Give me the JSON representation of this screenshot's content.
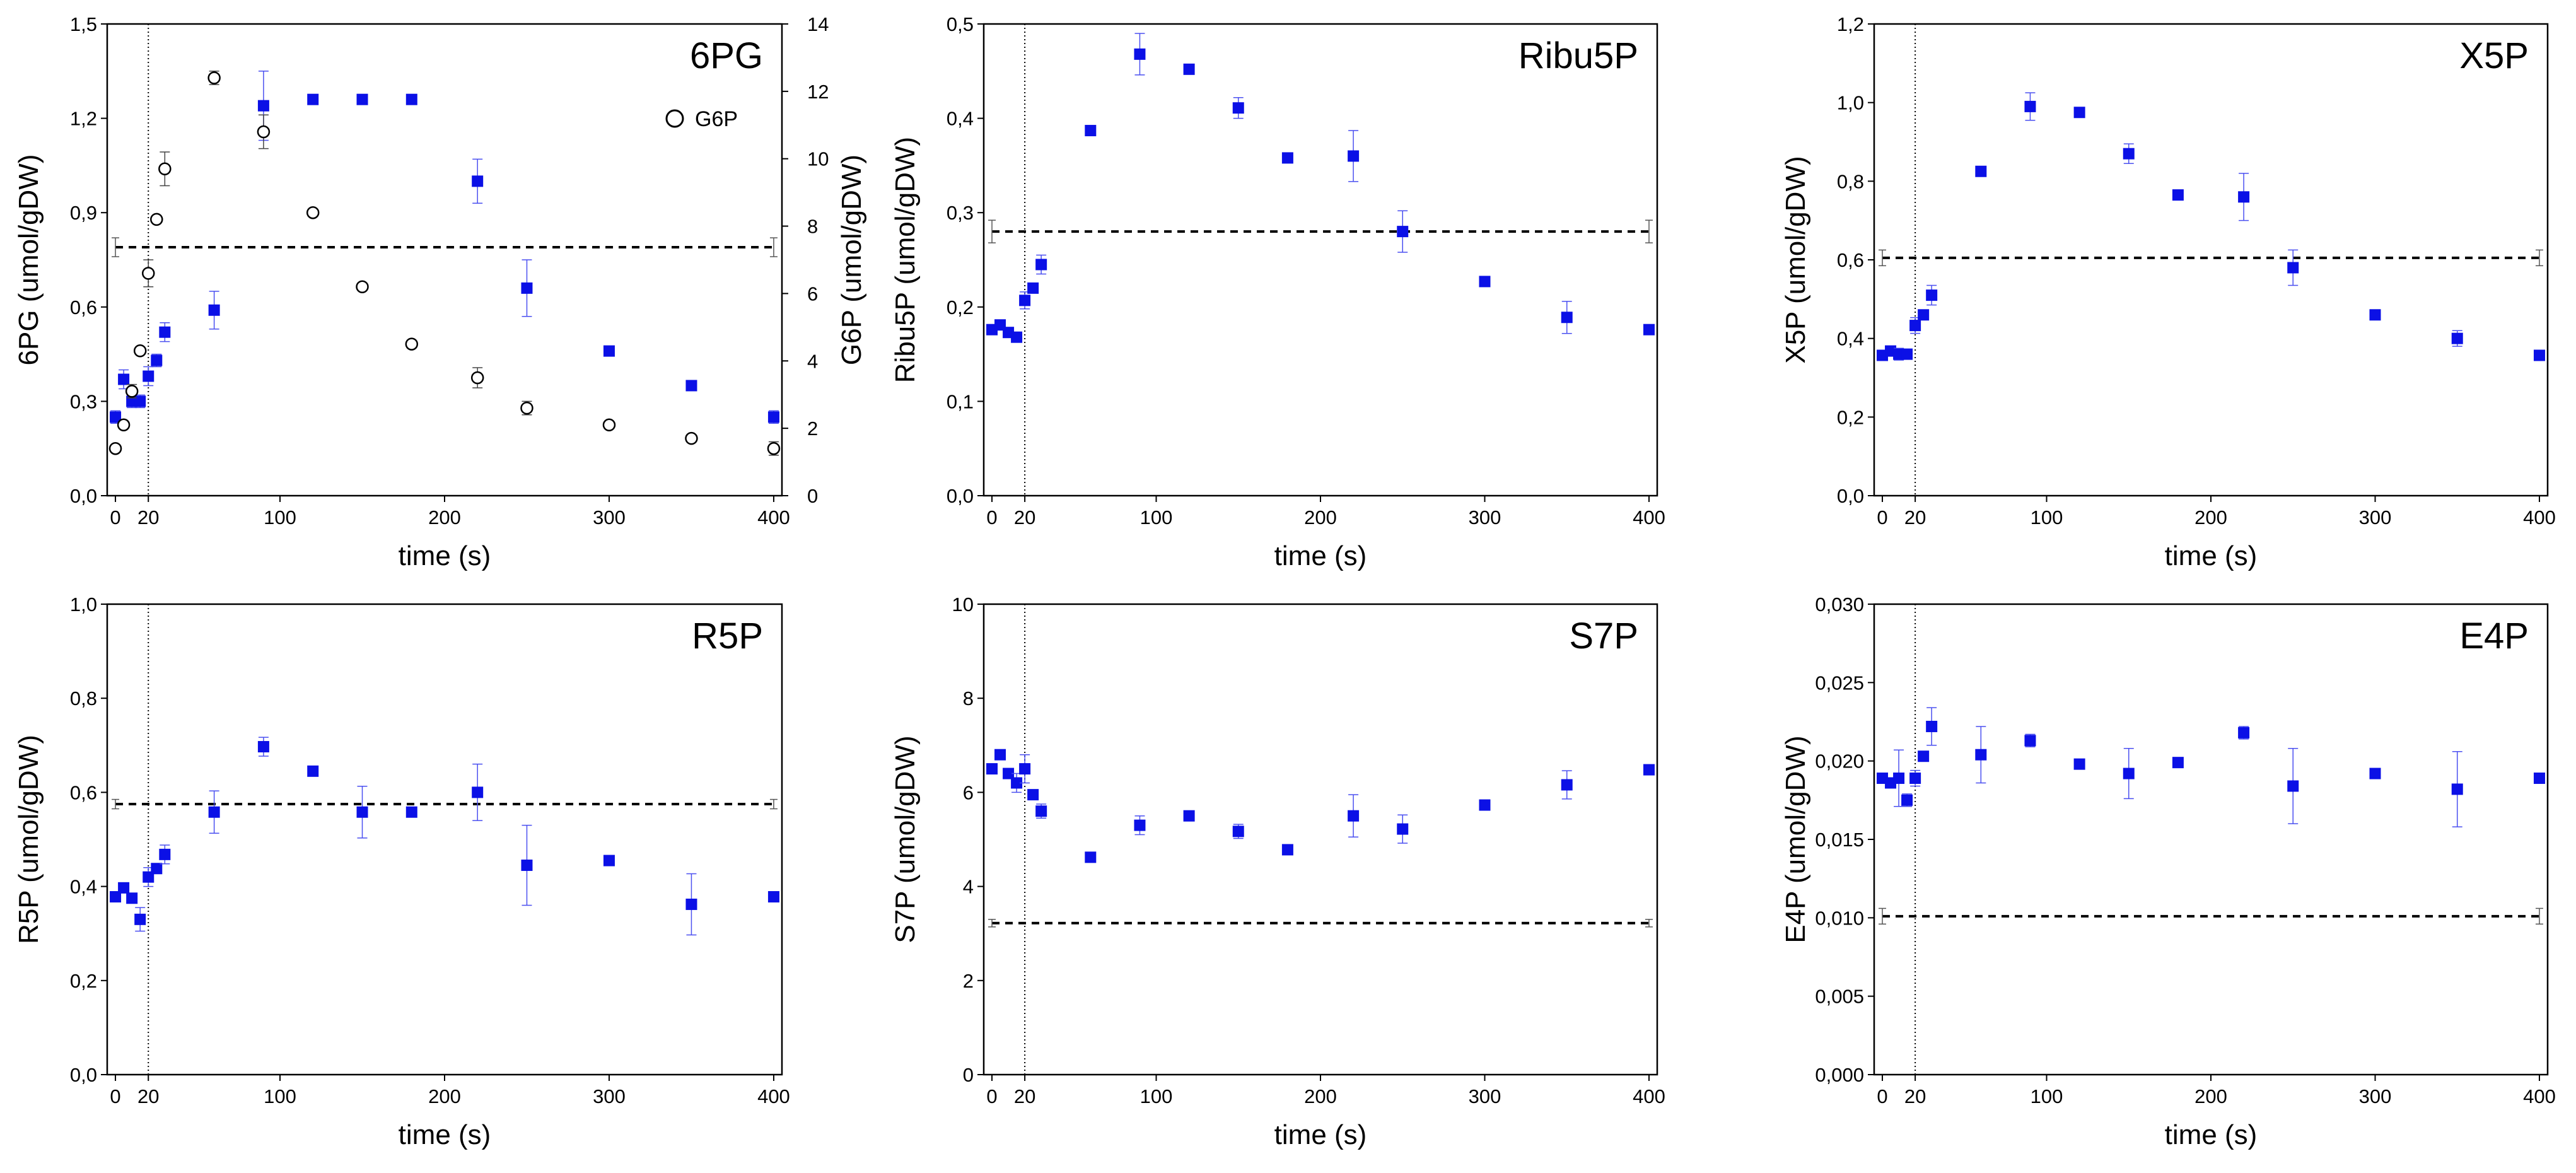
{
  "colors": {
    "series": "#0b10e6",
    "axis": "#000000",
    "baseline_dash": "#000000",
    "hollow_marker": "#000000"
  },
  "chart_data": [
    {
      "type": "scatter",
      "title": "6PG",
      "xlabel": "time (s)",
      "ylabel": "6PG (umol/gDW)",
      "xlim": [
        -5,
        405
      ],
      "ylim": [
        0,
        1.5
      ],
      "xticks": [
        0,
        20,
        100,
        200,
        300,
        400
      ],
      "xtick_labels": [
        "0",
        "20",
        "100",
        "200",
        "300",
        "400"
      ],
      "yticks": [
        0,
        0.3,
        0.6,
        0.9,
        1.2,
        1.5
      ],
      "ytick_labels": [
        "0,0",
        "0,3",
        "0,6",
        "0,9",
        "1,2",
        "1,5"
      ],
      "baseline": 0.79,
      "baseline_err": 0.03,
      "pulse_time": 20,
      "series": [
        {
          "marker": "square",
          "axis": "left",
          "x": [
            0,
            5,
            10,
            15,
            20,
            25,
            30,
            60,
            90,
            120,
            150,
            180,
            220,
            250,
            300,
            350,
            400
          ],
          "y": [
            0.25,
            0.37,
            0.3,
            0.3,
            0.38,
            0.43,
            0.52,
            0.59,
            1.24,
            1.26,
            1.26,
            1.26,
            1.0,
            0.66,
            0.46,
            0.35,
            0.25
          ],
          "err": [
            0.02,
            0.03,
            0.02,
            0.02,
            0.03,
            0.02,
            0.03,
            0.06,
            0.11,
            0.01,
            0.01,
            0.01,
            0.07,
            0.09,
            0.01,
            0.01,
            0.02
          ]
        },
        {
          "name": "G6P",
          "marker": "circle-open",
          "axis": "right",
          "x": [
            0,
            5,
            10,
            15,
            20,
            25,
            30,
            60,
            90,
            120,
            150,
            180,
            220,
            250,
            300,
            350,
            400
          ],
          "y": [
            1.4,
            2.1,
            3.1,
            4.3,
            6.6,
            8.2,
            9.7,
            12.4,
            10.8,
            8.4,
            6.2,
            4.5,
            3.5,
            2.6,
            2.1,
            1.7,
            1.4
          ],
          "err": [
            0.1,
            0.1,
            0.2,
            0.1,
            0.4,
            0.1,
            0.5,
            0.2,
            0.5,
            0.1,
            0.1,
            0.1,
            0.3,
            0.2,
            0.1,
            0.1,
            0.2
          ]
        }
      ],
      "y2label": "G6P (umol/gDW)",
      "y2lim": [
        0,
        14
      ],
      "y2ticks": [
        0,
        2,
        4,
        6,
        8,
        10,
        12,
        14
      ],
      "y2tick_labels": [
        "0",
        "2",
        "4",
        "6",
        "8",
        "10",
        "12",
        "14"
      ],
      "legend": {
        "position": "top-right",
        "label": "G6P"
      }
    },
    {
      "type": "scatter",
      "title": "Ribu5P",
      "xlabel": "time (s)",
      "ylabel": "Ribu5P (umol/gDW)",
      "xlim": [
        -5,
        405
      ],
      "ylim": [
        0,
        0.5
      ],
      "xticks": [
        0,
        20,
        100,
        200,
        300,
        400
      ],
      "xtick_labels": [
        "0",
        "20",
        "100",
        "200",
        "300",
        "400"
      ],
      "yticks": [
        0,
        0.1,
        0.2,
        0.3,
        0.4,
        0.5
      ],
      "ytick_labels": [
        "0,0",
        "0,1",
        "0,2",
        "0,3",
        "0,4",
        "0,5"
      ],
      "baseline": 0.28,
      "baseline_err": 0.012,
      "pulse_time": 20,
      "series": [
        {
          "marker": "square",
          "axis": "left",
          "x": [
            0,
            5,
            10,
            15,
            20,
            25,
            30,
            60,
            90,
            120,
            150,
            180,
            220,
            250,
            300,
            350,
            400
          ],
          "y": [
            0.176,
            0.181,
            0.173,
            0.168,
            0.207,
            0.22,
            0.245,
            0.387,
            0.468,
            0.452,
            0.411,
            0.358,
            0.36,
            0.28,
            0.227,
            0.189,
            0.176
          ],
          "err": [
            0.004,
            0.004,
            0.004,
            0.003,
            0.009,
            0.003,
            0.01,
            0.002,
            0.022,
            0.003,
            0.011,
            0.003,
            0.027,
            0.022,
            0.003,
            0.017,
            0.003
          ]
        }
      ]
    },
    {
      "type": "scatter",
      "title": "X5P",
      "xlabel": "time (s)",
      "ylabel": "X5P (umol/gDW)",
      "xlim": [
        -5,
        405
      ],
      "ylim": [
        0,
        1.2
      ],
      "xticks": [
        0,
        20,
        100,
        200,
        300,
        400
      ],
      "xtick_labels": [
        "0",
        "20",
        "100",
        "200",
        "300",
        "400"
      ],
      "yticks": [
        0,
        0.2,
        0.4,
        0.6,
        0.8,
        1.0,
        1.2
      ],
      "ytick_labels": [
        "0,0",
        "0,2",
        "0,4",
        "0,6",
        "0,8",
        "1,0",
        "1,2"
      ],
      "baseline": 0.605,
      "baseline_err": 0.02,
      "pulse_time": 20,
      "series": [
        {
          "marker": "square",
          "axis": "left",
          "x": [
            0,
            5,
            10,
            15,
            20,
            25,
            30,
            60,
            90,
            120,
            150,
            180,
            220,
            250,
            300,
            350,
            400
          ],
          "y": [
            0.357,
            0.368,
            0.36,
            0.36,
            0.433,
            0.46,
            0.51,
            0.825,
            0.99,
            0.975,
            0.87,
            0.765,
            0.76,
            0.58,
            0.46,
            0.4,
            0.357
          ],
          "err": [
            0.01,
            0.01,
            0.015,
            0.01,
            0.02,
            0.01,
            0.025,
            0.005,
            0.035,
            0.005,
            0.025,
            0.005,
            0.06,
            0.045,
            0.005,
            0.02,
            0.005
          ]
        }
      ]
    },
    {
      "type": "scatter",
      "title": "R5P",
      "xlabel": "time (s)",
      "ylabel": "R5P (umol/gDW)",
      "xlim": [
        -5,
        405
      ],
      "ylim": [
        0,
        1.0
      ],
      "xticks": [
        0,
        20,
        100,
        200,
        300,
        400
      ],
      "xtick_labels": [
        "0",
        "20",
        "100",
        "200",
        "300",
        "400"
      ],
      "yticks": [
        0,
        0.2,
        0.4,
        0.6,
        0.8,
        1.0
      ],
      "ytick_labels": [
        "0,0",
        "0,2",
        "0,4",
        "0,6",
        "0,8",
        "1,0"
      ],
      "baseline": 0.575,
      "baseline_err": 0.01,
      "pulse_time": 20,
      "series": [
        {
          "marker": "square",
          "axis": "left",
          "x": [
            0,
            5,
            10,
            15,
            20,
            25,
            30,
            60,
            90,
            120,
            150,
            180,
            220,
            250,
            300,
            350,
            400
          ],
          "y": [
            0.378,
            0.397,
            0.375,
            0.33,
            0.42,
            0.438,
            0.468,
            0.558,
            0.697,
            0.645,
            0.558,
            0.558,
            0.6,
            0.445,
            0.455,
            0.362,
            0.378
          ],
          "err": [
            0.01,
            0.01,
            0.01,
            0.025,
            0.02,
            0.01,
            0.02,
            0.045,
            0.02,
            0.005,
            0.055,
            0.005,
            0.06,
            0.085,
            0.005,
            0.065,
            0.01
          ]
        }
      ]
    },
    {
      "type": "scatter",
      "title": "S7P",
      "xlabel": "time (s)",
      "ylabel": "S7P (umol/gDW)",
      "xlim": [
        -5,
        405
      ],
      "ylim": [
        0,
        10
      ],
      "xticks": [
        0,
        20,
        100,
        200,
        300,
        400
      ],
      "xtick_labels": [
        "0",
        "20",
        "100",
        "200",
        "300",
        "400"
      ],
      "yticks": [
        0,
        2,
        4,
        6,
        8,
        10
      ],
      "ytick_labels": [
        "0",
        "2",
        "4",
        "6",
        "8",
        "10"
      ],
      "baseline": 3.22,
      "baseline_err": 0.08,
      "pulse_time": 20,
      "series": [
        {
          "marker": "square",
          "axis": "left",
          "x": [
            0,
            5,
            10,
            15,
            20,
            25,
            30,
            60,
            90,
            120,
            150,
            180,
            220,
            250,
            300,
            350,
            400
          ],
          "y": [
            6.5,
            6.8,
            6.4,
            6.2,
            6.5,
            5.95,
            5.6,
            4.62,
            5.3,
            5.5,
            5.17,
            4.78,
            5.5,
            5.22,
            5.73,
            6.16,
            6.48
          ],
          "err": [
            0.1,
            0.1,
            0.1,
            0.2,
            0.3,
            0.1,
            0.15,
            0.05,
            0.2,
            0.05,
            0.15,
            0.05,
            0.45,
            0.3,
            0.05,
            0.3,
            0.1
          ]
        }
      ]
    },
    {
      "type": "scatter",
      "title": "E4P",
      "xlabel": "time (s)",
      "ylabel": "E4P (umol/gDW)",
      "xlim": [
        -5,
        405
      ],
      "ylim": [
        0,
        0.03
      ],
      "xticks": [
        0,
        20,
        100,
        200,
        300,
        400
      ],
      "xtick_labels": [
        "0",
        "20",
        "100",
        "200",
        "300",
        "400"
      ],
      "yticks": [
        0,
        0.005,
        0.01,
        0.015,
        0.02,
        0.025,
        0.03
      ],
      "ytick_labels": [
        "0,000",
        "0,005",
        "0,010",
        "0,015",
        "0,020",
        "0,025",
        "0,030"
      ],
      "baseline": 0.0101,
      "baseline_err": 0.0005,
      "pulse_time": 20,
      "series": [
        {
          "marker": "square",
          "axis": "left",
          "x": [
            0,
            5,
            10,
            15,
            20,
            25,
            30,
            60,
            90,
            120,
            150,
            180,
            220,
            250,
            300,
            350,
            400
          ],
          "y": [
            0.0189,
            0.0186,
            0.0189,
            0.0175,
            0.0189,
            0.0203,
            0.0222,
            0.0204,
            0.0213,
            0.0198,
            0.0192,
            0.0199,
            0.0218,
            0.0184,
            0.0192,
            0.0182,
            0.0189
          ],
          "err": [
            0.0003,
            0.0003,
            0.0018,
            0.0004,
            0.0005,
            0.0003,
            0.0012,
            0.0018,
            0.0004,
            0.0002,
            0.0016,
            0.0002,
            0.0004,
            0.0024,
            0.0002,
            0.0024,
            0.0003
          ]
        }
      ]
    }
  ]
}
